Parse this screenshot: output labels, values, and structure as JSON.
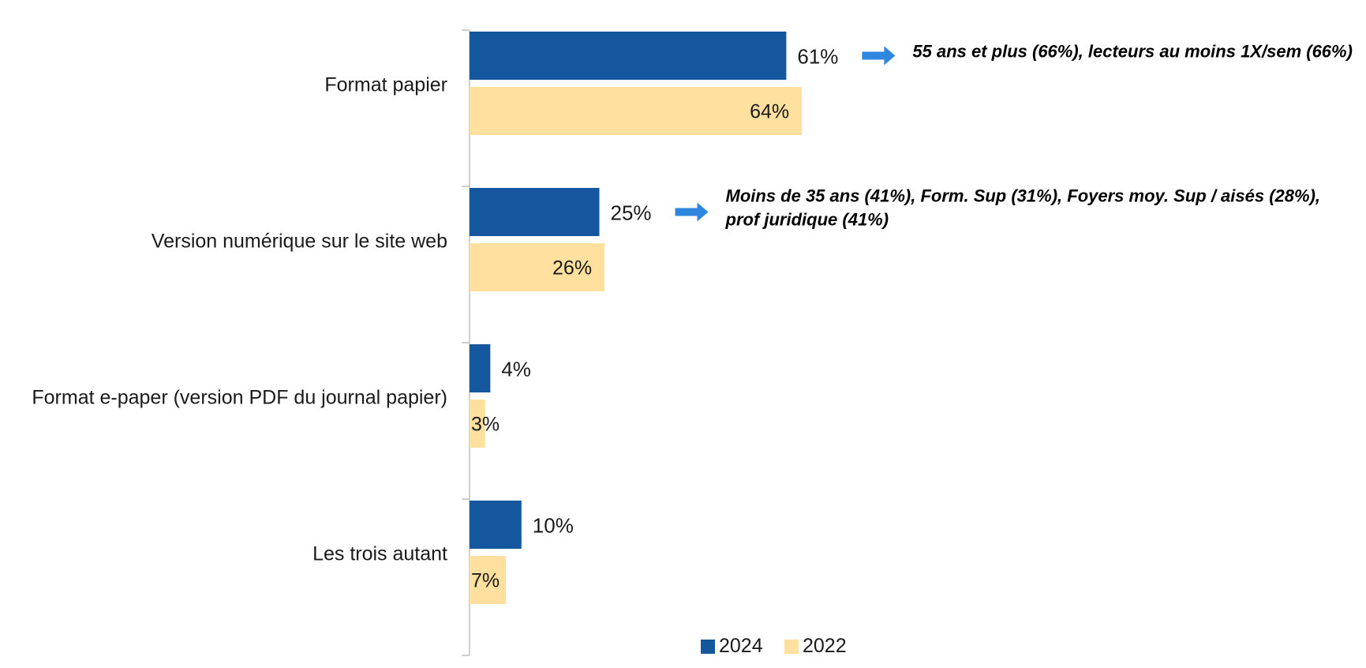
{
  "chart_data": {
    "type": "bar",
    "orientation": "horizontal",
    "categories": [
      "Format papier",
      "Version numérique sur le site web",
      "Format e-paper (version PDF du journal papier)",
      "Les trois autant"
    ],
    "series": [
      {
        "name": "2024",
        "values": [
          61,
          25,
          4,
          10
        ],
        "labels": [
          "61%",
          "25%",
          "4%",
          "10%"
        ],
        "color": "#14579E"
      },
      {
        "name": "2022",
        "values": [
          64,
          26,
          3,
          7
        ],
        "labels": [
          "64%",
          "26%",
          "3%",
          "7%"
        ],
        "color": "#FFE09E"
      }
    ],
    "annotations": [
      {
        "category_index": 0,
        "lines": [
          "55 ans et plus (66%), lecteurs au moins 1X/sem (66%)"
        ]
      },
      {
        "category_index": 1,
        "lines": [
          "Moins de 35 ans (41%), Form. Sup (31%), Foyers moy. Sup / aisés (28%),",
          "prof juridique (41%)"
        ]
      }
    ],
    "annotation_arrow_color": "#2E86DE",
    "legend_position": "bottom",
    "grid": false,
    "xlim": [
      0,
      100
    ]
  }
}
